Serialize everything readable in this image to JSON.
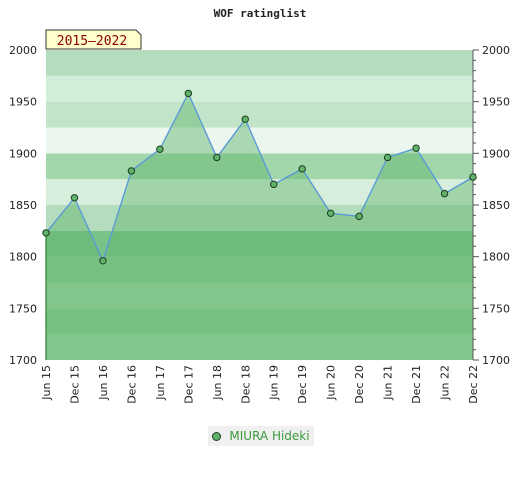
{
  "chart_data": {
    "type": "area",
    "title": "WOF ratinglist",
    "period_label": "2015–2022",
    "x": [
      "Jun 15",
      "Dec 15",
      "Jun 16",
      "Dec 16",
      "Jun 17",
      "Dec 17",
      "Jun 18",
      "Dec 18",
      "Jun 19",
      "Dec 19",
      "Jun 20",
      "Dec 20",
      "Jun 21",
      "Dec 21",
      "Jun 22",
      "Dec 22"
    ],
    "series": [
      {
        "name": "MIURA Hideki",
        "values": [
          1823,
          1857,
          1796,
          1883,
          1904,
          1958,
          1896,
          1933,
          1870,
          1885,
          1842,
          1839,
          1896,
          1905,
          1861,
          1877
        ]
      }
    ],
    "ylim": [
      1700,
      2000
    ],
    "y_ticks": [
      1700,
      1750,
      1800,
      1850,
      1900,
      1950,
      2000
    ],
    "grid": true,
    "legend_position": "bottom",
    "colors": {
      "line": "#5b9bd5",
      "fill": "#5fb36a",
      "marker": "#5fb36a",
      "marker_stroke": "#1e3d1e",
      "legend_text": "#3a9a3a",
      "badge_bg": "#ffffcc",
      "badge_text": "#8b0000"
    }
  }
}
